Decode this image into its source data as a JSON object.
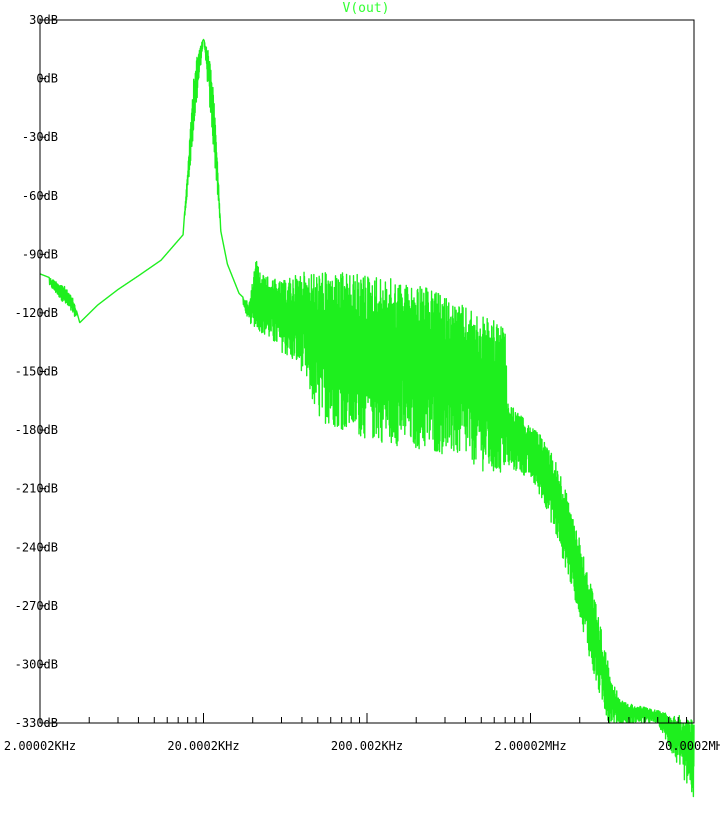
{
  "chart_data": {
    "type": "line",
    "title": "V(out)",
    "title_color": "#33ff33",
    "trace_color": "#1eef1e",
    "frame_color": "#000000",
    "background": "#ffffff",
    "grid": false,
    "xscale": "log",
    "xlim_hz": [
      2000.02,
      20000200
    ],
    "ylim_db": [
      -330,
      30
    ],
    "x_tick_values_hz": [
      2000.02,
      20000.2,
      200002,
      2000020,
      20000200
    ],
    "x_tick_labels": [
      "2.00002KHz",
      "20.0002KHz",
      "200.002KHz",
      "2.00002MHz",
      "20.0002MHz"
    ],
    "y_tick_values_db": [
      30,
      0,
      -30,
      -60,
      -90,
      -120,
      -150,
      -180,
      -210,
      -240,
      -270,
      -300,
      -330
    ],
    "y_tick_labels": [
      "30dB",
      "0dB",
      "-30dB",
      "-60dB",
      "-90dB",
      "-120dB",
      "-150dB",
      "-180dB",
      "-210dB",
      "-240dB",
      "-270dB",
      "-300dB",
      "-330dB"
    ],
    "series": [
      {
        "envelope_upper": [
          [
            2000,
            -100
          ],
          [
            2300,
            -102
          ],
          [
            2800,
            -106
          ],
          [
            3200,
            -113
          ],
          [
            3500,
            -125
          ],
          [
            4500,
            -116
          ],
          [
            6000,
            -108
          ],
          [
            8000,
            -101
          ],
          [
            11000,
            -93
          ],
          [
            13000,
            -86
          ],
          [
            15000,
            -80
          ],
          [
            16500,
            -30
          ],
          [
            17500,
            5
          ],
          [
            19000,
            17
          ],
          [
            20000,
            20
          ],
          [
            21000,
            17
          ],
          [
            22500,
            5
          ],
          [
            24000,
            -30
          ],
          [
            25500,
            -78
          ],
          [
            28000,
            -95
          ],
          [
            33000,
            -110
          ],
          [
            38000,
            -115
          ],
          [
            42000,
            -92
          ],
          [
            45000,
            -100
          ],
          [
            60000,
            -104
          ],
          [
            80000,
            -99
          ],
          [
            100000,
            -99
          ],
          [
            200000,
            -100
          ],
          [
            300000,
            -103
          ],
          [
            500000,
            -108
          ],
          [
            800000,
            -117
          ],
          [
            1100000,
            -123
          ],
          [
            1300000,
            -125
          ],
          [
            1400000,
            -130
          ],
          [
            1450000,
            -165
          ],
          [
            1550000,
            -168
          ],
          [
            2000000,
            -178
          ],
          [
            2500000,
            -185
          ],
          [
            3000000,
            -200
          ],
          [
            4000000,
            -235
          ],
          [
            5000000,
            -268
          ],
          [
            6000000,
            -300
          ],
          [
            7000000,
            -318
          ],
          [
            8000000,
            -320
          ],
          [
            10000000,
            -322
          ],
          [
            14000000,
            -325
          ],
          [
            20000000,
            -328
          ]
        ],
        "envelope_lower": [
          [
            2000,
            -100
          ],
          [
            3500,
            -125
          ],
          [
            15000,
            -80
          ],
          [
            20000,
            20
          ],
          [
            25500,
            -78
          ],
          [
            33000,
            -110
          ],
          [
            38000,
            -125
          ],
          [
            45000,
            -130
          ],
          [
            60000,
            -140
          ],
          [
            80000,
            -150
          ],
          [
            100000,
            -175
          ],
          [
            200000,
            -185
          ],
          [
            400000,
            -190
          ],
          [
            800000,
            -195
          ],
          [
            1200000,
            -205
          ],
          [
            1500000,
            -200
          ],
          [
            2000000,
            -205
          ],
          [
            2500000,
            -220
          ],
          [
            3000000,
            -240
          ],
          [
            4000000,
            -275
          ],
          [
            5000000,
            -310
          ],
          [
            6000000,
            -330
          ],
          [
            8000000,
            -330
          ],
          [
            12000000,
            -330
          ],
          [
            20000000,
            -370
          ]
        ]
      }
    ]
  }
}
